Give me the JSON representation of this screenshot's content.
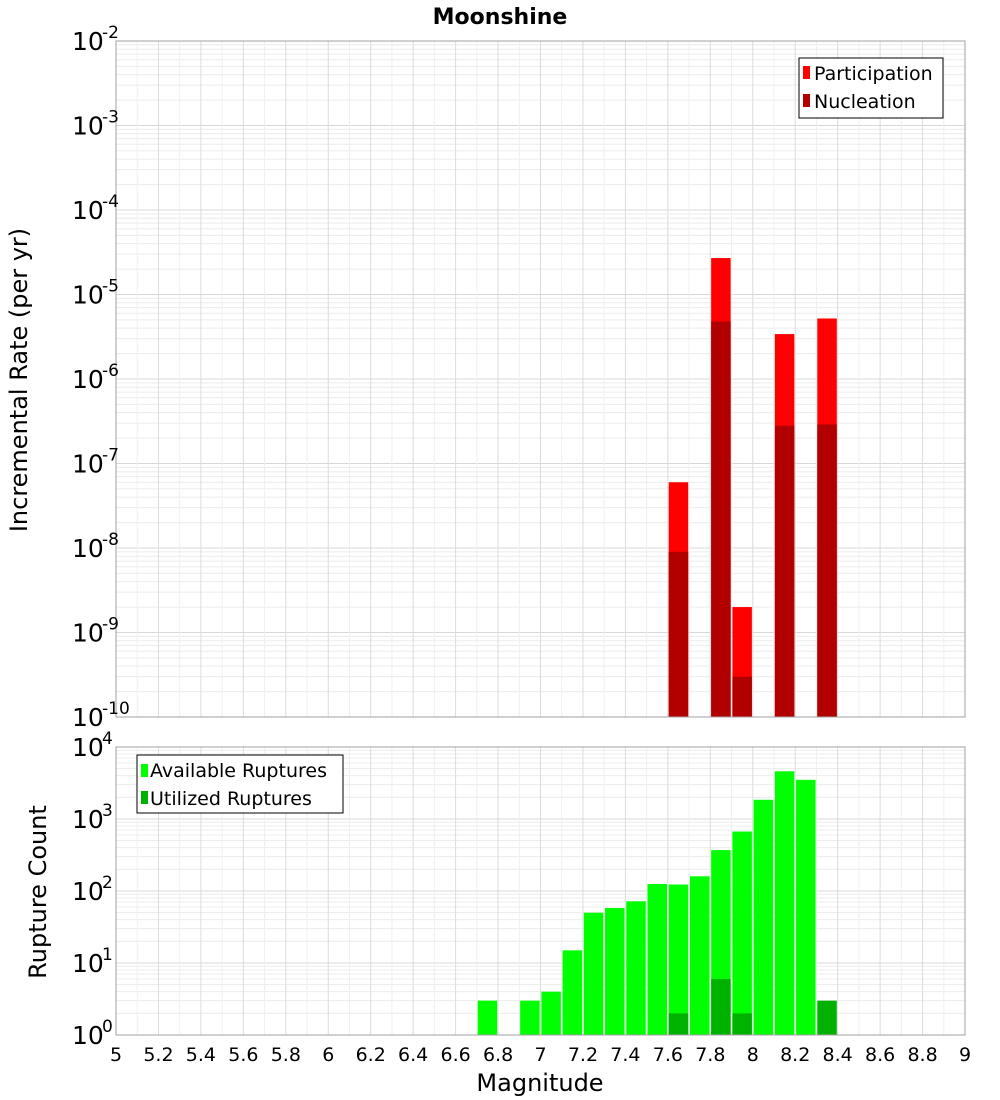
{
  "chart_data": [
    {
      "type": "bar",
      "title": "Moonshine",
      "xlabel": "",
      "ylabel": "Incremental Rate (per yr)",
      "y_scale": "log",
      "ylim_exponents": [
        -10,
        -2
      ],
      "xlim": [
        5,
        9
      ],
      "grid": true,
      "legend_position": "top-right",
      "x": [
        7.65,
        7.85,
        7.95,
        8.15,
        8.35
      ],
      "series": [
        {
          "name": "Participation",
          "color": "#ff0000",
          "values": [
            6e-08,
            2.7e-05,
            2e-09,
            3.4e-06,
            5.2e-06
          ]
        },
        {
          "name": "Nucleation",
          "color": "#b20000",
          "values": [
            9e-09,
            4.8e-06,
            3e-10,
            2.8e-07,
            2.9e-07
          ]
        }
      ]
    },
    {
      "type": "bar",
      "title": "",
      "xlabel": "Magnitude",
      "ylabel": "Rupture Count",
      "y_scale": "log",
      "ylim_exponents": [
        0,
        4
      ],
      "xlim": [
        5,
        9
      ],
      "grid": true,
      "legend_position": "top-left",
      "x": [
        6.75,
        6.95,
        7.05,
        7.15,
        7.25,
        7.35,
        7.45,
        7.55,
        7.65,
        7.75,
        7.85,
        7.95,
        8.05,
        8.15,
        8.25,
        8.35
      ],
      "series": [
        {
          "name": "Available Ruptures",
          "color": "#00ff00",
          "values": [
            3,
            3,
            4,
            15,
            50,
            58,
            72,
            125,
            123,
            160,
            370,
            670,
            1850,
            4600,
            3500,
            null
          ]
        },
        {
          "name": "Utilized Ruptures",
          "color": "#00b200",
          "values": [
            null,
            null,
            null,
            null,
            null,
            null,
            null,
            null,
            2,
            null,
            6,
            2,
            null,
            1,
            null,
            3
          ]
        }
      ]
    }
  ],
  "x_ticks": [
    "5",
    "5.2",
    "5.4",
    "5.6",
    "5.8",
    "6",
    "6.2",
    "6.4",
    "6.6",
    "6.8",
    "7",
    "7.2",
    "7.4",
    "7.6",
    "7.8",
    "8",
    "8.2",
    "8.4",
    "8.6",
    "8.8",
    "9"
  ],
  "decade_base": "10"
}
